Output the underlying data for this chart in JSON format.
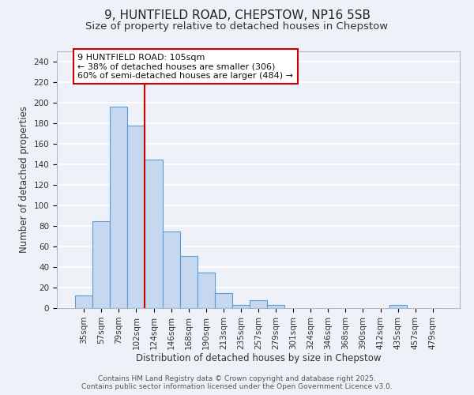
{
  "title": "9, HUNTFIELD ROAD, CHEPSTOW, NP16 5SB",
  "subtitle": "Size of property relative to detached houses in Chepstow",
  "xlabel": "Distribution of detached houses by size in Chepstow",
  "ylabel": "Number of detached properties",
  "bar_labels": [
    "35sqm",
    "57sqm",
    "79sqm",
    "102sqm",
    "124sqm",
    "146sqm",
    "168sqm",
    "190sqm",
    "213sqm",
    "235sqm",
    "257sqm",
    "279sqm",
    "301sqm",
    "324sqm",
    "346sqm",
    "368sqm",
    "390sqm",
    "412sqm",
    "435sqm",
    "457sqm",
    "479sqm"
  ],
  "bar_values": [
    12,
    85,
    196,
    178,
    145,
    75,
    51,
    35,
    15,
    3,
    8,
    3,
    0,
    0,
    0,
    0,
    0,
    0,
    3,
    0,
    0
  ],
  "bar_color": "#c5d8f0",
  "bar_edge_color": "#5b9bd5",
  "vline_color": "#cc0000",
  "vline_x_index": 3,
  "annotation_box_text": "9 HUNTFIELD ROAD: 105sqm\n← 38% of detached houses are smaller (306)\n60% of semi-detached houses are larger (484) →",
  "annotation_box_facecolor": "white",
  "annotation_box_edgecolor": "#cc0000",
  "ylim": [
    0,
    250
  ],
  "yticks": [
    0,
    20,
    40,
    60,
    80,
    100,
    120,
    140,
    160,
    180,
    200,
    220,
    240
  ],
  "footer_line1": "Contains HM Land Registry data © Crown copyright and database right 2025.",
  "footer_line2": "Contains public sector information licensed under the Open Government Licence v3.0.",
  "bg_color": "#eef2f8",
  "grid_color": "white",
  "title_fontsize": 11,
  "subtitle_fontsize": 9.5,
  "axis_label_fontsize": 8.5,
  "tick_fontsize": 7.5,
  "annotation_fontsize": 8,
  "footer_fontsize": 6.5
}
